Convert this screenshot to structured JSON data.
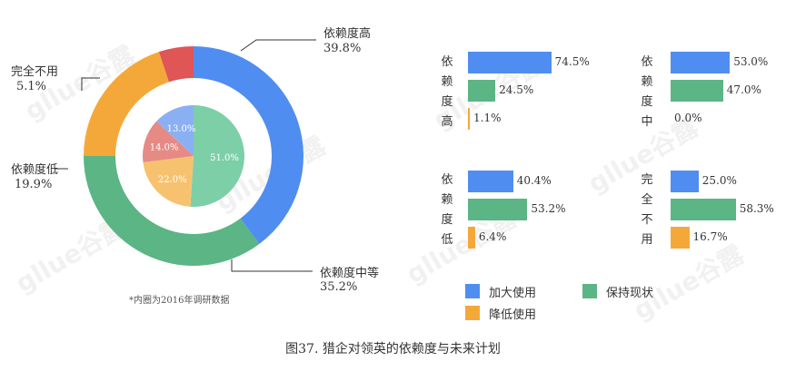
{
  "caption": "图37. 猎企对领英的依赖度与未来计划",
  "note": "*内圈为2016年调研数据",
  "watermark": "gllue谷露",
  "colors": {
    "blue": "#4f8ef0",
    "green": "#5cb584",
    "orange": "#f5a83a",
    "red": "#e05555",
    "inner_blue": "#8ab0f3",
    "inner_green": "#7dcfa8",
    "inner_orange": "#f7c26f",
    "inner_red": "#e68a85"
  },
  "chart_data": [
    {
      "type": "pie",
      "role": "outer-donut",
      "slices": [
        {
          "label": "依赖度高",
          "value": 39.8,
          "value_label": "39.8%"
        },
        {
          "label": "依赖度中等",
          "value": 35.2,
          "value_label": "35.2%"
        },
        {
          "label": "依赖度低",
          "value": 19.9,
          "value_label": "19.9%"
        },
        {
          "label": "完全不用",
          "value": 5.1,
          "value_label": "5.1%"
        }
      ]
    },
    {
      "type": "pie",
      "role": "inner-pie",
      "slices": [
        {
          "value": 51.0,
          "value_label": "51.0%"
        },
        {
          "value": 22.0,
          "value_label": "22.0%"
        },
        {
          "value": 14.0,
          "value_label": "14.0%"
        },
        {
          "value": 13.0,
          "value_label": "13.0%"
        }
      ]
    },
    {
      "type": "bar",
      "orientation": "horizontal",
      "legend": [
        "加大使用",
        "保持现状",
        "降低使用"
      ],
      "groups": [
        {
          "label": [
            "依",
            "赖",
            "度",
            "高"
          ],
          "values": [
            74.5,
            24.5,
            1.1
          ],
          "value_labels": [
            "74.5%",
            "24.5%",
            "1.1%"
          ]
        },
        {
          "label": [
            "依",
            "赖",
            "度",
            "中"
          ],
          "values": [
            53.0,
            47.0,
            0.0
          ],
          "value_labels": [
            "53.0%",
            "47.0%",
            "0.0%"
          ]
        },
        {
          "label": [
            "依",
            "赖",
            "度",
            "低"
          ],
          "values": [
            40.4,
            53.2,
            6.4
          ],
          "value_labels": [
            "40.4%",
            "53.2%",
            "6.4%"
          ]
        },
        {
          "label": [
            "完",
            "全",
            "不",
            "用"
          ],
          "values": [
            25.0,
            58.3,
            16.7
          ],
          "value_labels": [
            "25.0%",
            "58.3%",
            "16.7%"
          ]
        }
      ]
    }
  ]
}
